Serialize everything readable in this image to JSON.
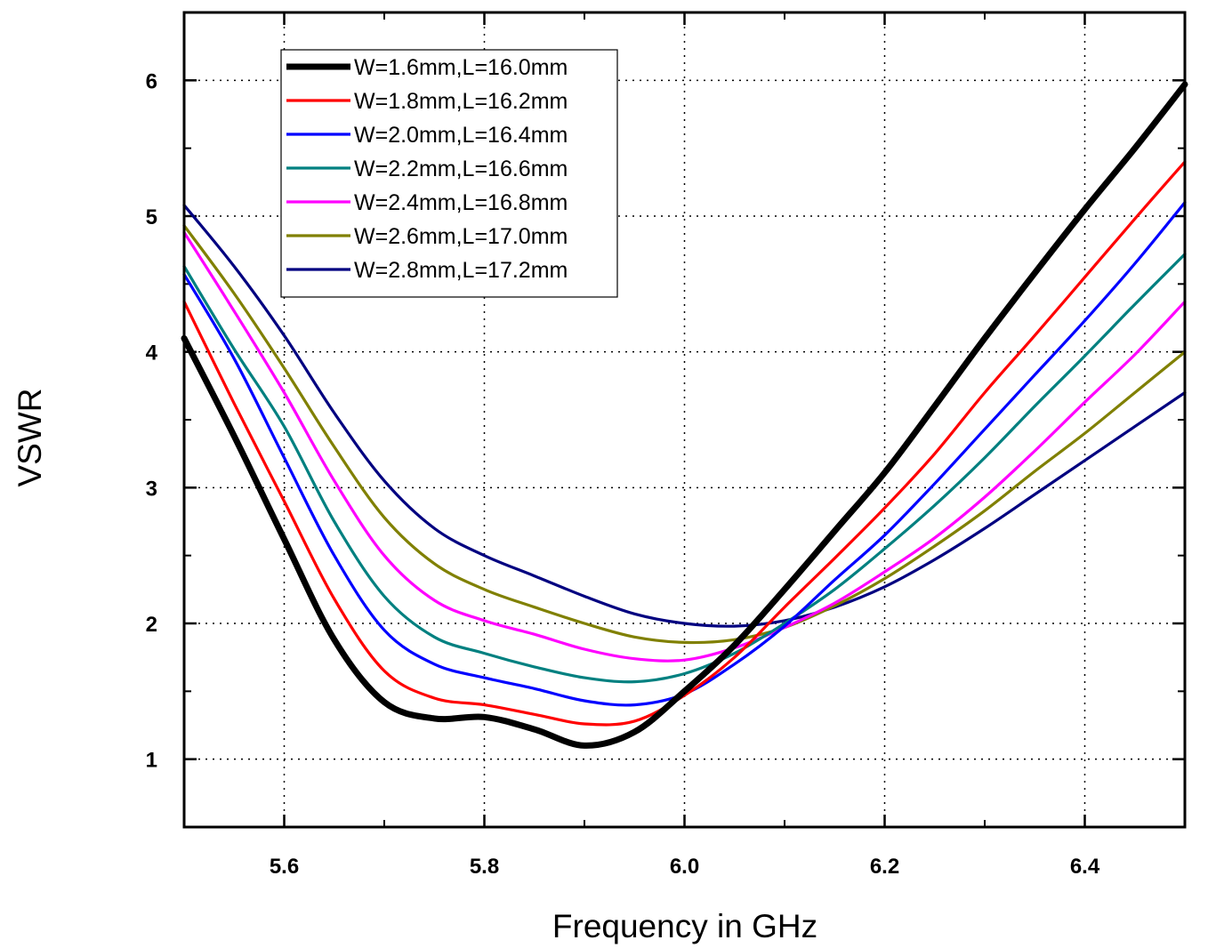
{
  "chart_data": {
    "type": "line",
    "title": "",
    "xlabel": "Frequency in GHz",
    "ylabel": "VSWR",
    "xlim": [
      5.5,
      6.5
    ],
    "ylim": [
      0.5,
      6.5
    ],
    "x_ticks": [
      5.6,
      5.8,
      6.0,
      6.2,
      6.4
    ],
    "x_tick_labels": [
      "5.6",
      "5.8",
      "6.0",
      "6.2",
      "6.4"
    ],
    "y_ticks": [
      1,
      2,
      3,
      4,
      5,
      6
    ],
    "y_tick_labels": [
      "1",
      "2",
      "3",
      "4",
      "5",
      "6"
    ],
    "grid": true,
    "legend_position": "top-left",
    "x": [
      5.5,
      5.55,
      5.6,
      5.65,
      5.7,
      5.75,
      5.8,
      5.85,
      5.9,
      5.95,
      6.0,
      6.05,
      6.1,
      6.15,
      6.2,
      6.25,
      6.3,
      6.35,
      6.4,
      6.45,
      6.5
    ],
    "series": [
      {
        "name": "W=1.6mm,L=16.0mm",
        "color": "#000000",
        "values": [
          4.1,
          3.38,
          2.62,
          1.88,
          1.42,
          1.3,
          1.31,
          1.22,
          1.1,
          1.2,
          1.5,
          1.84,
          2.25,
          2.68,
          3.11,
          3.6,
          4.1,
          4.58,
          5.05,
          5.5,
          5.97
        ]
      },
      {
        "name": "W=1.8mm,L=16.2mm",
        "color": "#ff0000",
        "values": [
          4.37,
          3.62,
          2.9,
          2.18,
          1.65,
          1.45,
          1.4,
          1.33,
          1.26,
          1.28,
          1.47,
          1.75,
          2.12,
          2.48,
          2.85,
          3.25,
          3.7,
          4.12,
          4.55,
          4.98,
          5.4
        ]
      },
      {
        "name": "W=2.0mm,L=16.4mm",
        "color": "#0000ff",
        "values": [
          4.57,
          3.95,
          3.22,
          2.5,
          1.95,
          1.7,
          1.6,
          1.52,
          1.43,
          1.4,
          1.48,
          1.7,
          1.98,
          2.32,
          2.65,
          3.03,
          3.43,
          3.83,
          4.23,
          4.65,
          5.1
        ]
      },
      {
        "name": "W=2.2mm,L=16.6mm",
        "color": "#008080",
        "values": [
          4.63,
          4.02,
          3.45,
          2.75,
          2.2,
          1.9,
          1.78,
          1.68,
          1.6,
          1.57,
          1.63,
          1.78,
          2.0,
          2.25,
          2.55,
          2.87,
          3.22,
          3.6,
          3.97,
          4.35,
          4.72
        ]
      },
      {
        "name": "W=2.4mm,L=16.8mm",
        "color": "#ff00ff",
        "values": [
          4.88,
          4.3,
          3.7,
          3.05,
          2.5,
          2.17,
          2.02,
          1.92,
          1.81,
          1.74,
          1.73,
          1.82,
          1.97,
          2.15,
          2.38,
          2.63,
          2.93,
          3.27,
          3.63,
          3.98,
          4.37
        ]
      },
      {
        "name": "W=2.6mm,L=17.0mm",
        "color": "#808000",
        "values": [
          4.93,
          4.43,
          3.88,
          3.3,
          2.78,
          2.44,
          2.25,
          2.12,
          2.0,
          1.9,
          1.86,
          1.88,
          1.97,
          2.13,
          2.33,
          2.57,
          2.83,
          3.12,
          3.4,
          3.7,
          4.0
        ]
      },
      {
        "name": "W=2.8mm,L=17.2mm",
        "color": "#000080",
        "values": [
          5.08,
          4.63,
          4.12,
          3.55,
          3.05,
          2.7,
          2.5,
          2.35,
          2.2,
          2.07,
          2.0,
          1.98,
          2.02,
          2.12,
          2.27,
          2.47,
          2.7,
          2.95,
          3.2,
          3.45,
          3.7
        ]
      }
    ]
  }
}
